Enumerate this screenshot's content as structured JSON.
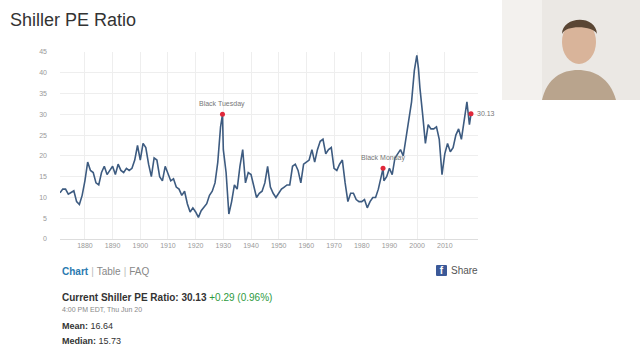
{
  "chart_data": {
    "type": "line",
    "title": "Shiller PE Ratio",
    "color": "#3d5b80",
    "grid": true,
    "x": [
      1871,
      1872,
      1873,
      1874,
      1875,
      1876,
      1877,
      1878,
      1879,
      1880,
      1881,
      1882,
      1883,
      1884,
      1885,
      1886,
      1887,
      1888,
      1889,
      1890,
      1891,
      1892,
      1893,
      1894,
      1895,
      1896,
      1897,
      1898,
      1899,
      1900,
      1901,
      1902,
      1903,
      1904,
      1905,
      1906,
      1907,
      1908,
      1909,
      1910,
      1911,
      1912,
      1913,
      1914,
      1915,
      1916,
      1917,
      1918,
      1919,
      1920,
      1921,
      1922,
      1923,
      1924,
      1925,
      1926,
      1927,
      1928,
      1929,
      1929.7,
      1930,
      1931,
      1932,
      1933,
      1934,
      1935,
      1936,
      1937,
      1938,
      1939,
      1940,
      1941,
      1942,
      1943,
      1944,
      1945,
      1946,
      1947,
      1948,
      1949,
      1950,
      1951,
      1952,
      1953,
      1954,
      1955,
      1956,
      1957,
      1958,
      1959,
      1960,
      1961,
      1962,
      1963,
      1964,
      1965,
      1966,
      1967,
      1968,
      1969,
      1970,
      1971,
      1972,
      1973,
      1974,
      1975,
      1976,
      1977,
      1978,
      1979,
      1980,
      1981,
      1982,
      1983,
      1984,
      1985,
      1986,
      1987,
      1987.7,
      1988,
      1989,
      1990,
      1991,
      1992,
      1993,
      1994,
      1995,
      1996,
      1997,
      1998,
      1999,
      1999.9,
      2000.5,
      2001,
      2002,
      2003,
      2004,
      2005,
      2006,
      2007,
      2008,
      2009,
      2010,
      2011,
      2012,
      2013,
      2014,
      2015,
      2016,
      2017,
      2018,
      2018.9,
      2019.47
    ],
    "values": [
      11.1,
      12.0,
      12.0,
      10.8,
      11.2,
      11.6,
      9.0,
      8.3,
      10.5,
      14.0,
      18.5,
      16.5,
      16.0,
      13.5,
      13.0,
      16.0,
      17.5,
      15.5,
      16.5,
      17.5,
      15.5,
      18.0,
      16.5,
      16.0,
      17.0,
      16.5,
      17.0,
      19.0,
      22.5,
      19.0,
      23.0,
      22.0,
      18.0,
      15.0,
      19.5,
      19.0,
      15.0,
      14.0,
      17.5,
      15.5,
      14.0,
      14.5,
      12.5,
      12.0,
      10.5,
      11.5,
      8.5,
      6.5,
      7.5,
      6.5,
      5.2,
      6.8,
      7.8,
      8.5,
      10.5,
      11.5,
      13.5,
      18.5,
      27.0,
      30.0,
      21.5,
      16.0,
      6.0,
      9.0,
      13.0,
      12.0,
      17.5,
      21.5,
      13.5,
      16.0,
      15.5,
      12.5,
      10.0,
      11.0,
      11.5,
      13.5,
      17.5,
      12.5,
      11.0,
      10.0,
      11.0,
      12.0,
      12.5,
      13.0,
      13.0,
      17.5,
      18.0,
      16.5,
      13.5,
      18.0,
      18.5,
      19.0,
      21.5,
      18.5,
      21.5,
      23.5,
      24.0,
      20.5,
      21.5,
      22.0,
      17.0,
      16.5,
      18.0,
      19.0,
      13.5,
      9.0,
      11.0,
      11.0,
      9.5,
      9.0,
      9.0,
      9.5,
      7.5,
      9.0,
      10.0,
      10.0,
      12.0,
      15.0,
      17.0,
      14.0,
      15.0,
      17.0,
      15.5,
      19.5,
      20.5,
      21.5,
      20.0,
      24.5,
      28.0,
      33.0,
      40.5,
      44.2,
      41.0,
      36.5,
      30.0,
      23.0,
      27.5,
      26.5,
      26.5,
      27.0,
      24.0,
      15.5,
      20.5,
      23.0,
      21.0,
      22.0,
      25.0,
      26.5,
      24.0,
      28.0,
      33.0,
      27.5,
      30.13
    ],
    "xlim": [
      1871,
      2022
    ],
    "ylim": [
      0,
      45
    ],
    "xticks": [
      1880,
      1890,
      1900,
      1910,
      1920,
      1930,
      1940,
      1950,
      1960,
      1970,
      1980,
      1990,
      2000,
      2010
    ],
    "yticks": [
      0,
      5,
      10,
      15,
      20,
      25,
      30,
      35,
      40,
      45
    ],
    "annotations": [
      {
        "x": 1929.7,
        "y": 30.0,
        "text": "Black Tuesday",
        "color": "#e0283a"
      },
      {
        "x": 1987.7,
        "y": 17.0,
        "text": "Black Monday",
        "color": "#e0283a"
      },
      {
        "x": 2019.47,
        "y": 30.13,
        "text": "30.13",
        "color": "#e0283a"
      }
    ]
  },
  "page": {
    "tabs": [
      "Chart",
      "Table",
      "FAQ"
    ],
    "tab_separator": "|",
    "share_icon": "f",
    "share": "Share",
    "current": {
      "label": "Current Shiller PE Ratio:",
      "value": "30.13",
      "change": "+0.29 (0.96%)"
    },
    "timestamp": "4:00 PM EDT, Thu Jun 20",
    "stats": [
      {
        "label": "Mean:",
        "value": "16.64"
      },
      {
        "label": "Median:",
        "value": "15.73"
      }
    ]
  }
}
